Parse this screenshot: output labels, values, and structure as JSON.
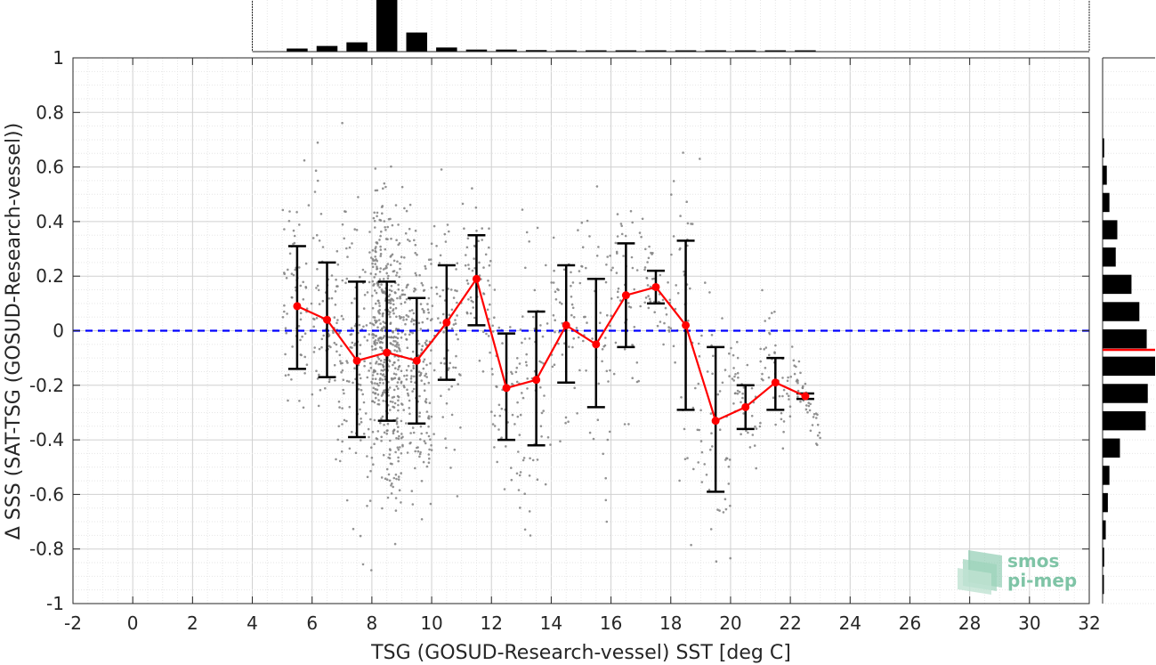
{
  "chart_data": {
    "type": "scatter",
    "xlabel": "TSG (GOSUD-Research-vessel) SST [deg C]",
    "ylabel": "Δ SSS (SAT-TSG (GOSUD-Research-vessel))",
    "xlim": [
      -2,
      32
    ],
    "ylim": [
      -1,
      1
    ],
    "xticks": [
      -2,
      0,
      2,
      4,
      6,
      8,
      10,
      12,
      14,
      16,
      18,
      20,
      22,
      24,
      26,
      28,
      30,
      32
    ],
    "yticks": [
      -1,
      -0.8,
      -0.6,
      -0.4,
      -0.2,
      0,
      0.2,
      0.4,
      0.6,
      0.8,
      1
    ],
    "grid": true,
    "reference_line": {
      "y": 0,
      "color": "#0000ff",
      "style": "dashed"
    },
    "binned_mean": {
      "color": "#ff0000",
      "x": [
        5.5,
        6.5,
        7.5,
        8.5,
        9.5,
        10.5,
        11.5,
        12.5,
        13.5,
        14.5,
        15.5,
        16.5,
        17.5,
        18.5,
        19.5,
        20.5,
        21.5,
        22.5
      ],
      "mean": [
        0.09,
        0.04,
        -0.11,
        -0.08,
        -0.11,
        0.03,
        0.19,
        -0.21,
        -0.18,
        0.02,
        -0.05,
        0.13,
        0.16,
        0.02,
        -0.33,
        -0.28,
        -0.19,
        -0.24
      ],
      "lower": [
        -0.14,
        -0.17,
        -0.39,
        -0.33,
        -0.34,
        -0.18,
        0.02,
        -0.4,
        -0.42,
        -0.19,
        -0.28,
        -0.06,
        0.1,
        -0.29,
        -0.59,
        -0.36,
        -0.29,
        -0.25
      ],
      "upper": [
        0.31,
        0.25,
        0.18,
        0.18,
        0.12,
        0.24,
        0.35,
        -0.01,
        0.07,
        0.24,
        0.19,
        0.32,
        0.22,
        0.33,
        -0.06,
        -0.2,
        -0.1,
        -0.23
      ]
    },
    "scatter_color": "#808080",
    "top_histogram": {
      "bin_centers": [
        5.5,
        6.5,
        7.5,
        8.5,
        9.5,
        10.5,
        11.5,
        12.5,
        13.5,
        14.5,
        15.5,
        16.5,
        17.5,
        18.5,
        19.5,
        20.5,
        21.5,
        22.5
      ],
      "relative_counts": [
        0.06,
        0.11,
        0.18,
        1.0,
        0.37,
        0.08,
        0.04,
        0.04,
        0.03,
        0.02,
        0.015,
        0.015,
        0.015,
        0.015,
        0.015,
        0.01,
        0.01,
        0.01
      ]
    },
    "right_histogram": {
      "bin_centers": [
        -0.93,
        -0.83,
        -0.73,
        -0.63,
        -0.53,
        -0.43,
        -0.33,
        -0.23,
        -0.13,
        -0.03,
        0.07,
        0.17,
        0.27,
        0.37,
        0.47,
        0.57,
        0.67
      ],
      "relative_counts": [
        0.01,
        0.03,
        0.06,
        0.1,
        0.13,
        0.33,
        0.82,
        0.86,
        1.0,
        0.84,
        0.7,
        0.55,
        0.25,
        0.28,
        0.13,
        0.08,
        0.03
      ],
      "median_line": {
        "y": -0.07,
        "color": "#ff0000"
      }
    }
  },
  "logo": {
    "line1": "smos",
    "line2": "pi-mep"
  }
}
